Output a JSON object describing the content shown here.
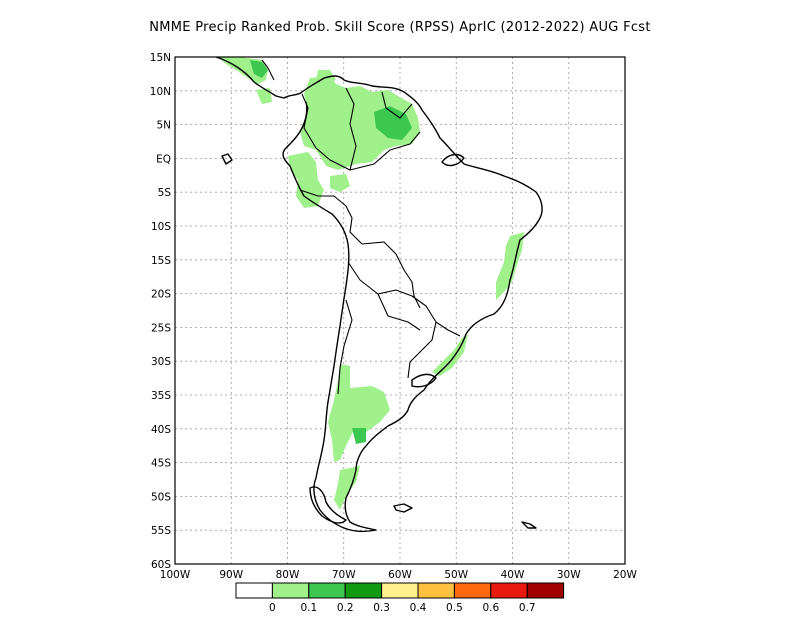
{
  "title": "NMME Precip Ranked Prob. Skill Score (RPSS) AprIC (2012-2022) AUG Fcst",
  "lat_labels": [
    "15N",
    "10N",
    "5N",
    "EQ",
    "5S",
    "10S",
    "15S",
    "20S",
    "25S",
    "30S",
    "35S",
    "40S",
    "45S",
    "50S",
    "55S",
    "60S"
  ],
  "lon_labels": [
    "100W",
    "90W",
    "80W",
    "70W",
    "60W",
    "50W",
    "40W",
    "30W",
    "20W"
  ],
  "legend": {
    "labels": [
      "0",
      "0.1",
      "0.2",
      "0.3",
      "0.4",
      "0.5",
      "0.6",
      "0.7"
    ],
    "colors": [
      "#ffffff",
      "#a0f08c",
      "#3cc850",
      "#129912",
      "#fff08c",
      "#ffc040",
      "#ff6a10",
      "#e81a10",
      "#a00000"
    ]
  },
  "map_data": {
    "lon_range": [
      -100,
      -20
    ],
    "lat_range": [
      -60,
      15
    ],
    "grid": true
  }
}
